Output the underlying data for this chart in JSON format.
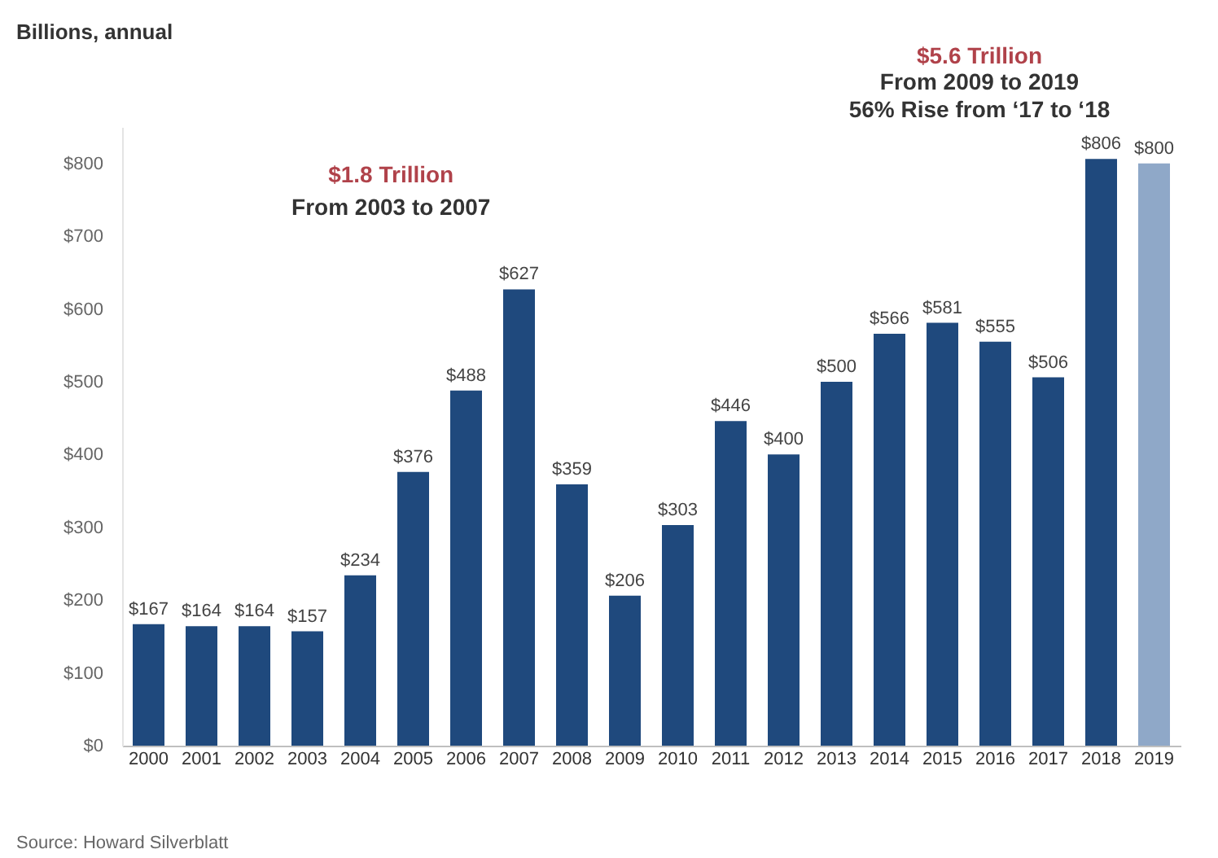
{
  "chart_data": {
    "type": "bar",
    "subtitle": "Billions, annual",
    "categories": [
      "2000",
      "2001",
      "2002",
      "2003",
      "2004",
      "2005",
      "2006",
      "2007",
      "2008",
      "2009",
      "2010",
      "2011",
      "2012",
      "2013",
      "2014",
      "2015",
      "2016",
      "2017",
      "2018",
      "2019"
    ],
    "values": [
      167,
      164,
      164,
      157,
      234,
      376,
      488,
      627,
      359,
      206,
      303,
      446,
      400,
      500,
      566,
      581,
      555,
      506,
      806,
      800
    ],
    "colors": [
      "#1f497d",
      "#1f497d",
      "#1f497d",
      "#1f497d",
      "#1f497d",
      "#1f497d",
      "#1f497d",
      "#1f497d",
      "#1f497d",
      "#1f497d",
      "#1f497d",
      "#1f497d",
      "#1f497d",
      "#1f497d",
      "#1f497d",
      "#1f497d",
      "#1f497d",
      "#1f497d",
      "#1f497d",
      "#8fa8c8"
    ],
    "value_labels": [
      "$167",
      "$164",
      "$164",
      "$157",
      "$234",
      "$376",
      "$488",
      "$627",
      "$359",
      "$206",
      "$303",
      "$446",
      "$400",
      "$500",
      "$566",
      "$581",
      "$555",
      "$506",
      "$806",
      "$800"
    ],
    "ylim": [
      0,
      850
    ],
    "yticks": [
      {
        "value": 0,
        "label": "$0"
      },
      {
        "value": 100,
        "label": "$100"
      },
      {
        "value": 200,
        "label": "$200"
      },
      {
        "value": 300,
        "label": "$300"
      },
      {
        "value": 400,
        "label": "$400"
      },
      {
        "value": 500,
        "label": "$500"
      },
      {
        "value": 600,
        "label": "$600"
      },
      {
        "value": 700,
        "label": "$700"
      },
      {
        "value": 800,
        "label": "$800"
      }
    ],
    "annotations": [
      "$1.8 Trillion",
      "From 2003 to 2007",
      "$5.6 Trillion",
      "From 2009 to 2019",
      "56% Rise from ‘17 to ‘18",
      "Source: Howard Silverblatt"
    ],
    "grid": false
  }
}
